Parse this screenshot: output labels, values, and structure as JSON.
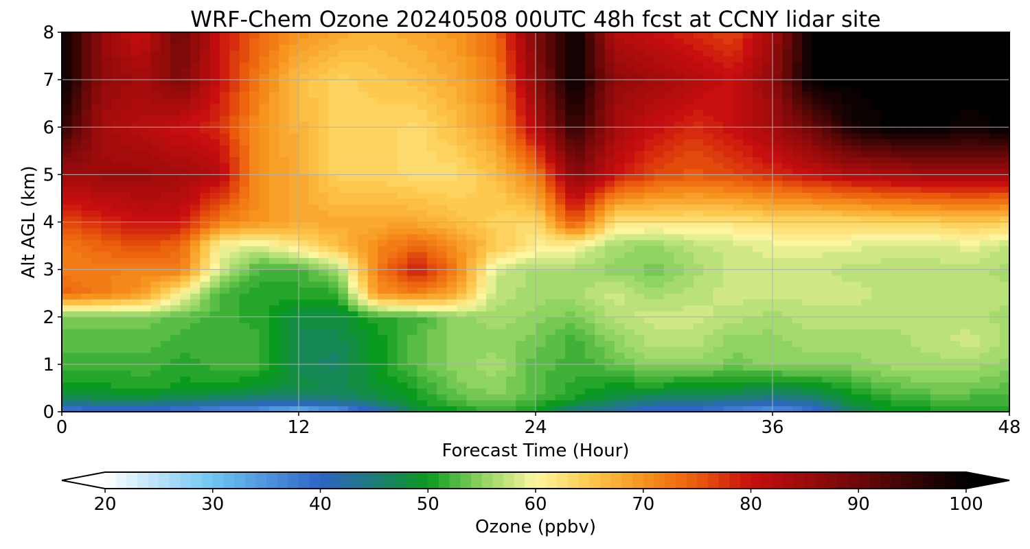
{
  "chart_data": {
    "type": "heatmap",
    "title": "WRF-Chem Ozone  20240508 00UTC 48h fcst at CCNY lidar site",
    "xlabel": "Forecast Time (Hour)",
    "ylabel": "Alt AGL (km)",
    "xlim": [
      0,
      48
    ],
    "ylim": [
      0,
      8
    ],
    "xticks": [
      0,
      12,
      24,
      36,
      48
    ],
    "yticks": [
      0,
      1,
      2,
      3,
      4,
      5,
      6,
      7,
      8
    ],
    "grid": true,
    "x": [
      0,
      2,
      4,
      6,
      8,
      10,
      12,
      14,
      16,
      18,
      20,
      22,
      24,
      26,
      28,
      30,
      32,
      34,
      36,
      38,
      40,
      42,
      44,
      46,
      48
    ],
    "y": [
      0,
      0.25,
      0.5,
      1,
      1.5,
      2,
      2.5,
      3,
      3.5,
      4,
      5,
      6,
      7,
      8
    ],
    "z": [
      [
        36,
        38,
        38,
        37,
        35,
        34,
        30,
        34,
        40,
        48,
        50,
        52,
        50,
        44,
        42,
        38,
        38,
        36,
        34,
        38,
        46,
        50,
        50,
        50,
        50
      ],
      [
        46,
        47,
        47,
        46,
        45,
        44,
        44,
        45,
        47,
        50,
        53,
        54,
        52,
        50,
        47,
        45,
        45,
        44,
        43,
        44,
        49,
        51,
        52,
        52,
        52
      ],
      [
        50,
        50,
        51,
        50,
        50,
        49,
        48,
        47,
        49,
        51,
        54,
        55,
        53,
        51,
        50,
        50,
        49,
        49,
        48,
        49,
        51,
        53,
        54,
        54,
        53
      ],
      [
        52,
        52,
        52,
        51,
        52,
        52,
        47,
        46,
        50,
        53,
        55,
        56,
        53,
        52,
        53,
        55,
        55,
        54,
        55,
        55,
        55,
        56,
        56,
        56,
        55
      ],
      [
        53,
        53,
        53,
        52,
        52,
        52,
        47,
        47,
        50,
        53,
        55,
        55,
        54,
        52,
        55,
        57,
        57,
        55,
        55,
        56,
        56,
        56,
        57,
        58,
        56
      ],
      [
        54,
        54,
        54,
        53,
        52,
        51,
        48,
        48,
        51,
        52,
        55,
        56,
        55,
        54,
        57,
        58,
        58,
        57,
        56,
        57,
        57,
        57,
        57,
        57,
        56
      ],
      [
        74,
        72,
        70,
        61,
        52,
        51,
        51,
        51,
        70,
        72,
        68,
        57,
        56,
        56,
        58,
        56,
        57,
        58,
        58,
        58,
        58,
        57,
        57,
        57,
        57
      ],
      [
        72,
        72,
        71,
        72,
        58,
        52,
        52,
        56,
        72,
        80,
        72,
        58,
        56,
        56,
        55,
        54,
        56,
        58,
        58,
        58,
        57,
        57,
        57,
        57,
        56
      ],
      [
        72,
        74,
        76,
        74,
        60,
        58,
        62,
        66,
        71,
        74,
        70,
        65,
        61,
        60,
        56,
        55,
        57,
        58,
        59,
        59,
        59,
        58,
        58,
        59,
        57
      ],
      [
        76,
        78,
        80,
        80,
        72,
        70,
        68,
        68,
        68,
        68,
        66,
        64,
        63,
        76,
        62,
        62,
        62,
        62,
        63,
        63,
        63,
        64,
        64,
        65,
        64
      ],
      [
        84,
        85,
        85,
        84,
        82,
        70,
        68,
        64,
        64,
        63,
        63,
        66,
        72,
        87,
        80,
        76,
        75,
        76,
        78,
        80,
        82,
        83,
        84,
        84,
        84
      ],
      [
        96,
        84,
        82,
        80,
        78,
        70,
        67,
        64,
        64,
        63,
        66,
        70,
        82,
        96,
        84,
        80,
        78,
        80,
        84,
        90,
        98,
        100,
        100,
        99,
        100
      ],
      [
        100,
        86,
        84,
        88,
        80,
        72,
        66,
        64,
        65,
        66,
        68,
        72,
        86,
        100,
        86,
        84,
        82,
        80,
        86,
        100,
        100,
        100,
        100,
        100,
        100
      ],
      [
        100,
        86,
        80,
        90,
        80,
        74,
        70,
        68,
        67,
        68,
        70,
        74,
        88,
        100,
        82,
        80,
        78,
        76,
        84,
        100,
        100,
        100,
        100,
        100,
        100
      ]
    ],
    "colorbar": {
      "label": "Ozone  (ppbv)",
      "min": 20,
      "max": 100,
      "ticks": [
        20,
        30,
        40,
        50,
        60,
        70,
        80,
        90,
        100
      ],
      "extend": "both",
      "stops": [
        {
          "v": 20,
          "c": "#ffffff"
        },
        {
          "v": 30,
          "c": "#6ec6f2"
        },
        {
          "v": 40,
          "c": "#2f64c6"
        },
        {
          "v": 45,
          "c": "#1e7c7a"
        },
        {
          "v": 50,
          "c": "#0a9a1e"
        },
        {
          "v": 55,
          "c": "#8fd460"
        },
        {
          "v": 60,
          "c": "#fdf6a0"
        },
        {
          "v": 65,
          "c": "#fdc94e"
        },
        {
          "v": 70,
          "c": "#f7941d"
        },
        {
          "v": 75,
          "c": "#ea5a0c"
        },
        {
          "v": 80,
          "c": "#c80e0e"
        },
        {
          "v": 90,
          "c": "#6e0808"
        },
        {
          "v": 100,
          "c": "#000000"
        }
      ]
    }
  }
}
